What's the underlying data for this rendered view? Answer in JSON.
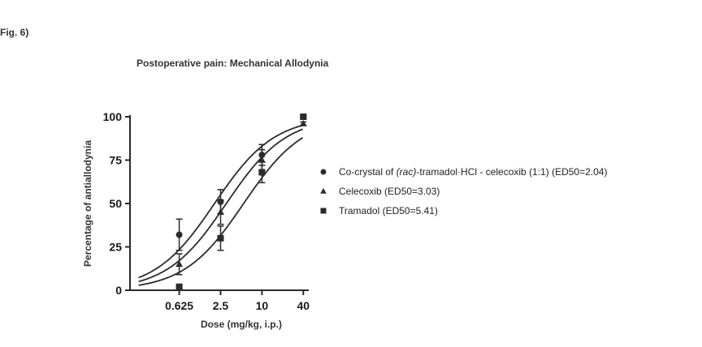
{
  "figure_label": "Fig. 6)",
  "chart_data": {
    "type": "scatter",
    "title": "Postoperative pain: Mechanical Allodynia",
    "xlabel": "Dose (mg/kg, i.p.)",
    "ylabel": "Percentage of antiallodynia",
    "x_scale": "log",
    "x_ticks": [
      0.625,
      2.5,
      10,
      40
    ],
    "x_tick_labels": [
      "0.625",
      "2.5",
      "10",
      "40"
    ],
    "xlim": [
      0.12,
      48
    ],
    "y_ticks": [
      0,
      25,
      50,
      75,
      100
    ],
    "y_tick_labels": [
      "0",
      "25",
      "50",
      "75",
      "100"
    ],
    "ylim": [
      0,
      100
    ],
    "legend_position": "right",
    "series": [
      {
        "name": "Co-crystal of (rac)-tramadol·HCl - celecoxib (1:1) (ED50=2.04)",
        "legend_parts": [
          "Co-crystal of ",
          "(rac)",
          "-tramadol·HCl - celecoxib (1:1) (ED50=2.04)"
        ],
        "marker": "circle",
        "ed50": 2.04,
        "x": [
          0.625,
          2.5,
          10,
          40
        ],
        "y": [
          32,
          51,
          78,
          100
        ],
        "err": [
          9,
          7,
          6,
          1
        ]
      },
      {
        "name": "Celecoxib (ED50=3.03)",
        "marker": "triangle",
        "ed50": 3.03,
        "x": [
          0.625,
          2.5,
          10,
          40
        ],
        "y": [
          15,
          45,
          75,
          96
        ],
        "err": [
          6,
          7,
          6,
          1
        ]
      },
      {
        "name": "Tramadol (ED50=5.41)",
        "marker": "square",
        "ed50": 5.41,
        "x": [
          0.625,
          2.5,
          10,
          40
        ],
        "y": [
          2,
          30,
          68,
          100
        ],
        "err": [
          1,
          7,
          6,
          1
        ]
      }
    ]
  }
}
